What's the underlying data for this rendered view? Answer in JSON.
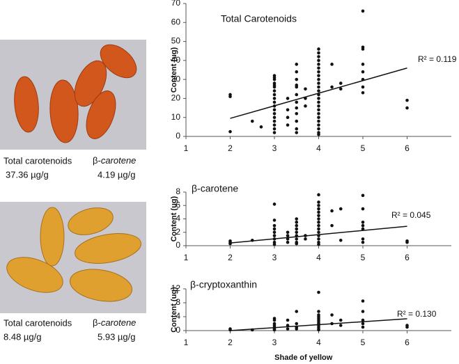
{
  "photos": [
    {
      "label_total": "Total carotenoids",
      "label_beta_prefix": "β-",
      "label_beta_italic": "carotene",
      "total": "37.36 µg/g",
      "beta": "4.19 µg/g"
    },
    {
      "label_total": "Total carotenoids",
      "label_beta_prefix": "β-",
      "label_beta_italic": "carotene",
      "total": "8.48 µg/g",
      "beta": "5.93 µg/g"
    }
  ],
  "chart_data": [
    {
      "type": "scatter",
      "title": "Total Carotenoids",
      "y_label": "Content  (ug)",
      "annotation": "R² = 0.119",
      "x": [
        2,
        2,
        2,
        2.5,
        2.7,
        3,
        3,
        3,
        3,
        3,
        3,
        3,
        3,
        3,
        3,
        3,
        3,
        3,
        3,
        3,
        3,
        3,
        3,
        3.3,
        3.3,
        3.3,
        3.3,
        3.5,
        3.5,
        3.5,
        3.5,
        3.5,
        3.5,
        3.5,
        3.5,
        3.5,
        3.5,
        3.5,
        3.5,
        3.7,
        3.7,
        3.7,
        4,
        4,
        4,
        4,
        4,
        4,
        4,
        4,
        4,
        4,
        4,
        4,
        4,
        4,
        4,
        4,
        4,
        4,
        4,
        4,
        4,
        4,
        4,
        4,
        4.3,
        4.3,
        4.5,
        4.5,
        5,
        5,
        5,
        5,
        5,
        5,
        5,
        5,
        6,
        6
      ],
      "values": [
        22,
        21,
        2.5,
        8,
        5,
        32,
        30,
        28,
        26,
        24,
        22,
        20,
        18,
        16,
        14,
        12,
        10,
        8,
        6,
        4,
        2,
        31,
        27,
        20,
        14,
        10,
        6,
        38,
        34,
        30,
        26,
        22,
        18,
        15,
        12,
        8,
        4,
        2,
        27,
        20,
        16,
        25,
        46,
        44,
        42,
        40,
        38,
        36,
        34,
        32,
        30,
        28,
        26,
        24,
        22,
        20,
        18,
        16,
        14,
        12,
        10,
        8,
        6,
        4,
        2,
        1,
        38,
        26,
        28,
        25,
        66,
        47,
        46,
        38,
        34,
        30,
        26,
        23,
        19,
        15
      ],
      "trendline": {
        "x": [
          2,
          6
        ],
        "y": [
          9.5,
          36
        ]
      },
      "color": "#111111",
      "xlim": [
        1,
        7
      ],
      "xticks": [
        1,
        2,
        3,
        4,
        5,
        6
      ],
      "ylim": [
        0,
        70
      ],
      "yticks": [
        0,
        10,
        20,
        30,
        40,
        50,
        60,
        70
      ]
    },
    {
      "type": "scatter",
      "title": "β-carotene",
      "y_label": "Content  (ug)",
      "annotation": "R² = 0.045",
      "x": [
        2,
        2,
        2,
        2.5,
        3,
        3,
        3,
        3,
        3,
        3,
        3,
        3,
        3,
        3.3,
        3.3,
        3.3,
        3.3,
        3.5,
        3.5,
        3.5,
        3.5,
        3.5,
        3.5,
        3.5,
        3.5,
        3.5,
        3.7,
        3.7,
        4,
        4,
        4,
        4,
        4,
        4,
        4,
        4,
        4,
        4,
        4,
        4,
        4,
        4,
        4,
        4.3,
        4.3,
        4.5,
        4.5,
        5,
        5,
        5,
        5,
        5,
        5,
        5,
        6,
        6
      ],
      "values": [
        0.7,
        0.5,
        0.3,
        0.8,
        6.2,
        3.8,
        3,
        2.5,
        2,
        1.5,
        1,
        0.5,
        0.2,
        2,
        1.5,
        1,
        0.5,
        4,
        3.5,
        3,
        2.5,
        2,
        1.5,
        1,
        0.5,
        0.3,
        1.5,
        1,
        7.6,
        6.5,
        6,
        5.5,
        5,
        4.5,
        4,
        3.5,
        3,
        2.5,
        2,
        1.5,
        1,
        0.5,
        0.2,
        5.2,
        3,
        5.5,
        0.8,
        7.5,
        5.5,
        3.5,
        3,
        2.5,
        1,
        0.5,
        0.7,
        0.5
      ],
      "trendline": {
        "x": [
          2,
          6
        ],
        "y": [
          0.4,
          2.9
        ]
      },
      "color": "#111111",
      "xlim": [
        1,
        7
      ],
      "xticks": [
        1,
        2,
        3,
        4,
        5,
        6
      ],
      "ylim": [
        0,
        8
      ],
      "yticks": [
        0,
        2,
        4,
        6,
        8
      ]
    },
    {
      "type": "scatter",
      "title": "β-cryptoxanthin",
      "y_label": "Content  (ug)",
      "x_label": "Shade of yellow",
      "annotation": "R² = 0.130",
      "x": [
        2,
        2,
        2.5,
        3,
        3,
        3,
        3,
        3,
        3,
        3,
        3.3,
        3.3,
        3.3,
        3.5,
        3.5,
        3.5,
        3.5,
        4,
        4,
        4,
        4,
        4,
        4,
        4,
        4,
        4,
        4,
        4,
        4,
        4.3,
        4.3,
        4.5,
        4.5,
        5,
        5,
        5,
        5,
        5,
        6,
        6
      ],
      "values": [
        0.5,
        0.2,
        0.2,
        3.5,
        3,
        2,
        1.5,
        1,
        0.5,
        0.2,
        3,
        1.5,
        0.5,
        5.5,
        2,
        1,
        0.5,
        11,
        5.5,
        4.5,
        4,
        3.5,
        3,
        2.5,
        2,
        1.5,
        1,
        0.5,
        0.2,
        4.5,
        2,
        3,
        1.5,
        8.5,
        5.5,
        3,
        2,
        1,
        1.5,
        1
      ],
      "trendline": {
        "x": [
          2,
          6
        ],
        "y": [
          0,
          3.4
        ]
      },
      "color": "#111111",
      "xlim": [
        1,
        7
      ],
      "xticks": [
        1,
        2,
        3,
        4,
        5,
        6
      ],
      "ylim": [
        0,
        12
      ],
      "yticks": [
        0,
        4,
        8,
        12
      ]
    }
  ]
}
